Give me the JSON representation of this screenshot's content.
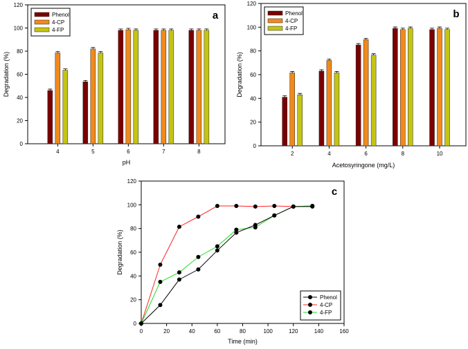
{
  "colors": {
    "Phenol": "#7a0000",
    "4-CP": "#f08a1c",
    "4-FP": "#c4c414"
  },
  "line_colors": {
    "Phenol": "#000000",
    "4-CP": "#ff2020",
    "4-FP": "#22dd22"
  },
  "chart_data": [
    {
      "type": "bar",
      "panel_label": "a",
      "title": "",
      "xlabel": "pH",
      "ylabel": "Degradation (%)",
      "ylim": [
        0,
        120
      ],
      "yticks": [
        "0",
        "20",
        "40",
        "60",
        "80",
        "100",
        "120"
      ],
      "categories": [
        "4",
        "5",
        "6",
        "7",
        "8"
      ],
      "legend": "top-left",
      "series": [
        {
          "name": "Phenol",
          "values": [
            46,
            53.5,
            98,
            98,
            98
          ]
        },
        {
          "name": "4-CP",
          "values": [
            78.5,
            82,
            98.5,
            98,
            98
          ]
        },
        {
          "name": "4-FP",
          "values": [
            63.5,
            78.5,
            98,
            98,
            98
          ]
        }
      ]
    },
    {
      "type": "bar",
      "panel_label": "b",
      "title": "",
      "xlabel": "Acetosyringone (mg/L)",
      "ylabel": "Degradation (%)",
      "ylim": [
        0,
        120
      ],
      "yticks": [
        "0",
        "20",
        "40",
        "60",
        "80",
        "100",
        "120"
      ],
      "categories": [
        "2",
        "4",
        "6",
        "8",
        "10"
      ],
      "legend": "top-left",
      "series": [
        {
          "name": "Phenol",
          "values": [
            41,
            63,
            85,
            99,
            98
          ]
        },
        {
          "name": "4-CP",
          "values": [
            61.5,
            72,
            89.5,
            98,
            99
          ]
        },
        {
          "name": "4-FP",
          "values": [
            43,
            61.5,
            76.5,
            99,
            98
          ]
        }
      ]
    },
    {
      "type": "line",
      "panel_label": "c",
      "title": "",
      "xlabel": "Time (min)",
      "ylabel": "Degradation (%)",
      "xlim": [
        0,
        160
      ],
      "ylim": [
        0,
        120
      ],
      "xticks": [
        "0",
        "20",
        "40",
        "60",
        "80",
        "100",
        "120",
        "140",
        "160"
      ],
      "yticks": [
        "0",
        "20",
        "40",
        "60",
        "80",
        "100",
        "120"
      ],
      "legend": "bottom-right",
      "x": [
        0,
        15,
        30,
        45,
        60,
        75,
        90,
        105,
        120,
        135
      ],
      "series": [
        {
          "name": "Phenol",
          "values": [
            0,
            15.5,
            37,
            45.5,
            61.5,
            76.5,
            83,
            91,
            98.5,
            98.5
          ]
        },
        {
          "name": "4-CP",
          "values": [
            0,
            49.5,
            81.5,
            90,
            99,
            99,
            98.5,
            99,
            98.5,
            99
          ]
        },
        {
          "name": "4-FP",
          "values": [
            0,
            35,
            43,
            56,
            65,
            79,
            81,
            91,
            98.5,
            99
          ]
        }
      ]
    }
  ]
}
